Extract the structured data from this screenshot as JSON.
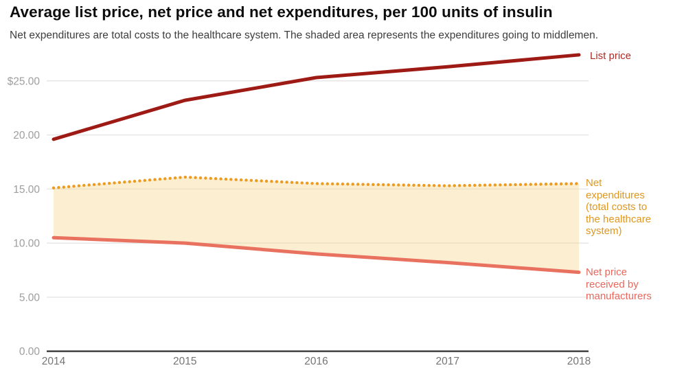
{
  "header": {
    "title": "Average list price, net price and net expenditures, per 100 units of insulin",
    "subtitle": "Net expenditures are total costs to the healthcare system. The shaded area represents the expenditures going to middlemen."
  },
  "chart_data": {
    "type": "line",
    "title": "Average list price, net price and net expenditures, per 100 units of insulin",
    "x": [
      2014,
      2015,
      2016,
      2017,
      2018
    ],
    "x_tick_labels": [
      "2014",
      "2015",
      "2016",
      "2017",
      "2018"
    ],
    "series": [
      {
        "id": "list-price",
        "name": "List price",
        "values": [
          19.6,
          23.2,
          25.3,
          26.3,
          27.4
        ],
        "color": "#9e1a15",
        "style": "solid"
      },
      {
        "id": "net-expenditures",
        "name": "Net expenditures (total costs to the healthcare system)",
        "values": [
          15.1,
          16.1,
          15.5,
          15.3,
          15.5
        ],
        "color": "#ec9c23",
        "style": "dotted"
      },
      {
        "id": "net-price",
        "name": "Net price received by manufacturers",
        "values": [
          10.5,
          10.0,
          9.0,
          8.2,
          7.3
        ],
        "color": "#e8725f",
        "style": "solid"
      }
    ],
    "shaded_area": {
      "between": [
        "net-expenditures",
        "net-price"
      ],
      "meaning": "expenditures going to middlemen",
      "color": "rgba(247,216,145,0.42)"
    },
    "ylim": [
      0,
      27.5
    ],
    "y_ticks": [
      {
        "value": 25,
        "label": "$25.00"
      },
      {
        "value": 20,
        "label": "20.00"
      },
      {
        "value": 15,
        "label": "15.00"
      },
      {
        "value": 10,
        "label": "10.00"
      },
      {
        "value": 5,
        "label": "5.00"
      },
      {
        "value": 0,
        "label": "0.00"
      }
    ],
    "grid": "horizontal",
    "legend_position": "right"
  },
  "legend": {
    "list_price": {
      "label": "List price",
      "color": "#b02a25"
    },
    "net_expenditures": {
      "label": "Net expenditures (total costs to the healthcare system)",
      "color": "#e0971f"
    },
    "net_price": {
      "label": "Net price received by manufacturers",
      "color": "#e9675c"
    }
  },
  "axis_colors": {
    "gridline": "#e6e6e6",
    "baseline": "#4a4a4a",
    "y_tick_text": "#9e9e9e",
    "x_tick_text": "#757575"
  }
}
